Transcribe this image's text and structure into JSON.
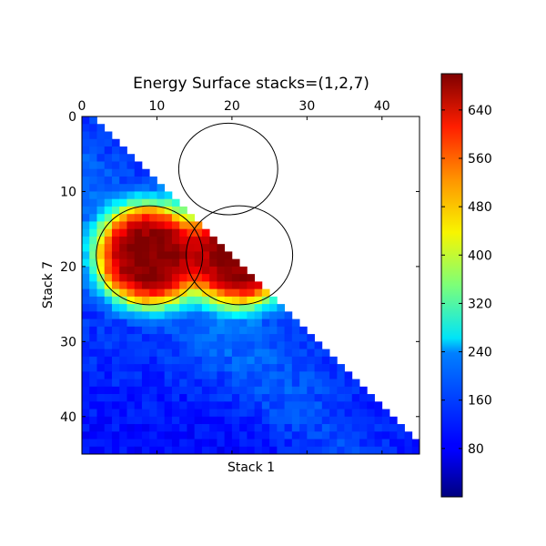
{
  "chart_data": {
    "type": "heatmap",
    "title": "Energy Surface stacks=(1,2,7)",
    "xlabel": "Stack 1",
    "ylabel": "Stack 7",
    "x_ticks": [
      0,
      10,
      20,
      30,
      40
    ],
    "y_ticks": [
      0,
      10,
      20,
      30,
      40
    ],
    "x_tick_position": "top",
    "grid_size": 45,
    "xlim": [
      0,
      45
    ],
    "ylim": [
      45,
      0
    ],
    "y_axis_inverted": true,
    "masked_region": "upper-right triangle (Stack 1 greater than Stack 7) is empty",
    "colormap": "jet",
    "colorbar": {
      "range": [
        0,
        700
      ],
      "ticks": [
        80,
        160,
        240,
        320,
        400,
        480,
        560,
        640
      ]
    },
    "high_energy_regions": [
      {
        "name": "",
        "x_range": [
          13,
          25
        ],
        "y_range": [
          1,
          12
        ],
        "peak": 700
      },
      {
        "name": "",
        "x_range": [
          2,
          15
        ],
        "y_range": [
          12,
          24
        ],
        "peak": 700
      },
      {
        "name": "",
        "x_range": [
          14,
          27
        ],
        "y_range": [
          12,
          24
        ],
        "peak": 700
      }
    ],
    "contour_level": 600,
    "background_level": 120
  }
}
